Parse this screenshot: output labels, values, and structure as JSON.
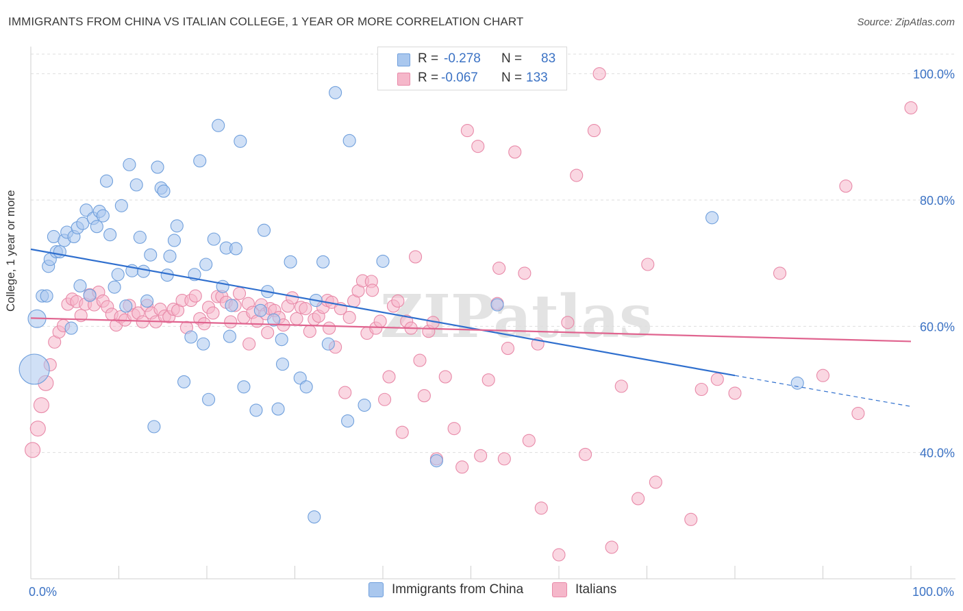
{
  "title": "IMMIGRANTS FROM CHINA VS ITALIAN COLLEGE, 1 YEAR OR MORE CORRELATION CHART",
  "source": "Source: ZipAtlas.com",
  "watermark": "ZIPatlas",
  "colors": {
    "blue_fill": "#a9c7ee",
    "blue_stroke": "#6f9fdc",
    "blue_line": "#2f6fce",
    "pink_fill": "#f5b7ca",
    "pink_stroke": "#e889a8",
    "pink_line": "#e0648f",
    "tick_label": "#3b72c4",
    "grid": "#dedede"
  },
  "stats": {
    "r_label": "R =",
    "n_label": "N =",
    "blue_r": "-0.278",
    "blue_n": "83",
    "pink_r": "-0.067",
    "pink_n": "133"
  },
  "chart_data": {
    "type": "scatter",
    "title": "IMMIGRANTS FROM CHINA VS ITALIAN COLLEGE, 1 YEAR OR MORE CORRELATION CHART",
    "xlabel": "",
    "ylabel": "College, 1 year or more",
    "xlim": [
      0,
      100
    ],
    "ylim": [
      20,
      103
    ],
    "x_tick_labels": [
      "0.0%",
      "100.0%"
    ],
    "y_ticks": [
      40,
      60,
      80,
      100
    ],
    "y_tick_labels": [
      "40.0%",
      "60.0%",
      "80.0%",
      "100.0%"
    ],
    "grid": true,
    "legend": "bottom",
    "series": [
      {
        "name": "Immigrants from China",
        "color": "#6f9fdc",
        "points": [
          [
            0.4,
            53.2
          ],
          [
            0.7,
            61.2
          ],
          [
            1.3,
            64.8
          ],
          [
            1.8,
            64.8
          ],
          [
            2.0,
            69.5
          ],
          [
            2.2,
            70.6
          ],
          [
            2.6,
            74.2
          ],
          [
            2.9,
            71.8
          ],
          [
            3.3,
            71.8
          ],
          [
            3.8,
            73.6
          ],
          [
            4.1,
            74.9
          ],
          [
            4.6,
            59.7
          ],
          [
            4.9,
            74.2
          ],
          [
            5.3,
            75.6
          ],
          [
            5.6,
            66.4
          ],
          [
            5.9,
            76.3
          ],
          [
            6.3,
            78.4
          ],
          [
            6.7,
            64.9
          ],
          [
            7.1,
            77.1
          ],
          [
            7.5,
            75.8
          ],
          [
            7.8,
            78.2
          ],
          [
            8.2,
            77.5
          ],
          [
            8.6,
            83.0
          ],
          [
            9.0,
            74.5
          ],
          [
            9.5,
            66.2
          ],
          [
            9.9,
            68.2
          ],
          [
            10.3,
            79.1
          ],
          [
            10.8,
            63.2
          ],
          [
            11.2,
            85.6
          ],
          [
            11.5,
            68.8
          ],
          [
            12.0,
            82.4
          ],
          [
            12.4,
            74.1
          ],
          [
            12.8,
            68.7
          ],
          [
            13.2,
            64.0
          ],
          [
            13.6,
            71.3
          ],
          [
            14.0,
            44.1
          ],
          [
            14.4,
            85.2
          ],
          [
            14.8,
            81.9
          ],
          [
            15.1,
            81.4
          ],
          [
            15.5,
            68.1
          ],
          [
            15.8,
            71.1
          ],
          [
            16.3,
            73.6
          ],
          [
            16.6,
            75.9
          ],
          [
            17.4,
            51.2
          ],
          [
            18.2,
            58.3
          ],
          [
            18.6,
            68.2
          ],
          [
            19.2,
            86.2
          ],
          [
            19.6,
            57.2
          ],
          [
            19.9,
            69.8
          ],
          [
            20.2,
            48.4
          ],
          [
            20.8,
            73.8
          ],
          [
            21.3,
            91.8
          ],
          [
            21.8,
            66.3
          ],
          [
            22.2,
            72.4
          ],
          [
            22.6,
            58.4
          ],
          [
            22.8,
            63.3
          ],
          [
            23.3,
            72.3
          ],
          [
            23.8,
            89.3
          ],
          [
            24.2,
            50.4
          ],
          [
            25.6,
            46.7
          ],
          [
            26.1,
            62.5
          ],
          [
            26.5,
            75.2
          ],
          [
            26.9,
            65.5
          ],
          [
            27.6,
            61.0
          ],
          [
            28.1,
            46.9
          ],
          [
            28.5,
            57.9
          ],
          [
            28.6,
            54.0
          ],
          [
            29.5,
            70.2
          ],
          [
            30.6,
            51.8
          ],
          [
            31.3,
            50.4
          ],
          [
            32.2,
            29.8
          ],
          [
            32.4,
            64.1
          ],
          [
            33.2,
            70.2
          ],
          [
            33.8,
            57.2
          ],
          [
            34.6,
            97.0
          ],
          [
            36.0,
            45.0
          ],
          [
            36.2,
            89.4
          ],
          [
            37.9,
            47.5
          ],
          [
            40.0,
            70.3
          ],
          [
            46.1,
            38.7
          ],
          [
            77.4,
            77.2
          ],
          [
            87.1,
            51.0
          ],
          [
            53.0,
            63.4
          ]
        ]
      },
      {
        "name": "Italians",
        "color": "#e889a8",
        "points": [
          [
            0.2,
            40.4
          ],
          [
            0.8,
            43.8
          ],
          [
            1.2,
            47.5
          ],
          [
            1.7,
            51.0
          ],
          [
            2.2,
            53.9
          ],
          [
            2.7,
            57.5
          ],
          [
            3.2,
            59.1
          ],
          [
            3.7,
            60.1
          ],
          [
            4.2,
            63.5
          ],
          [
            4.7,
            64.3
          ],
          [
            5.2,
            63.9
          ],
          [
            5.7,
            61.7
          ],
          [
            6.2,
            63.5
          ],
          [
            6.7,
            65.0
          ],
          [
            7.2,
            63.4
          ],
          [
            7.7,
            65.4
          ],
          [
            8.2,
            64.0
          ],
          [
            8.7,
            63.1
          ],
          [
            9.2,
            61.9
          ],
          [
            9.7,
            60.2
          ],
          [
            10.2,
            61.5
          ],
          [
            10.7,
            61.0
          ],
          [
            11.2,
            63.3
          ],
          [
            11.7,
            61.8
          ],
          [
            12.2,
            62.1
          ],
          [
            12.7,
            60.7
          ],
          [
            13.2,
            63.3
          ],
          [
            13.7,
            62.1
          ],
          [
            14.2,
            60.7
          ],
          [
            14.7,
            62.7
          ],
          [
            15.2,
            61.6
          ],
          [
            15.7,
            61.5
          ],
          [
            16.2,
            62.7
          ],
          [
            16.7,
            62.5
          ],
          [
            17.2,
            64.1
          ],
          [
            17.7,
            59.8
          ],
          [
            18.2,
            64.1
          ],
          [
            18.7,
            64.8
          ],
          [
            19.2,
            61.2
          ],
          [
            19.7,
            60.4
          ],
          [
            20.2,
            63.0
          ],
          [
            20.7,
            62.1
          ],
          [
            21.2,
            64.7
          ],
          [
            21.7,
            64.7
          ],
          [
            22.2,
            63.8
          ],
          [
            22.7,
            60.7
          ],
          [
            23.2,
            63.3
          ],
          [
            23.7,
            65.2
          ],
          [
            24.2,
            61.4
          ],
          [
            24.7,
            63.6
          ],
          [
            25.2,
            62.2
          ],
          [
            25.7,
            60.8
          ],
          [
            26.2,
            63.4
          ],
          [
            26.7,
            62.0
          ],
          [
            27.2,
            62.8
          ],
          [
            27.7,
            62.5
          ],
          [
            28.2,
            61.4
          ],
          [
            28.7,
            60.2
          ],
          [
            29.2,
            63.2
          ],
          [
            29.7,
            64.5
          ],
          [
            30.2,
            61.2
          ],
          [
            30.7,
            63.0
          ],
          [
            31.2,
            62.8
          ],
          [
            31.7,
            59.2
          ],
          [
            32.2,
            61.1
          ],
          [
            32.7,
            61.6
          ],
          [
            33.2,
            63.0
          ],
          [
            33.7,
            64.1
          ],
          [
            34.2,
            63.8
          ],
          [
            34.6,
            56.7
          ],
          [
            35.2,
            62.8
          ],
          [
            35.7,
            49.5
          ],
          [
            36.2,
            61.4
          ],
          [
            36.7,
            64.0
          ],
          [
            37.2,
            65.6
          ],
          [
            37.7,
            67.2
          ],
          [
            38.2,
            58.9
          ],
          [
            38.7,
            67.1
          ],
          [
            39.2,
            59.7
          ],
          [
            39.7,
            60.8
          ],
          [
            40.2,
            48.4
          ],
          [
            40.7,
            52.0
          ],
          [
            41.2,
            63.2
          ],
          [
            41.7,
            64.0
          ],
          [
            42.2,
            43.2
          ],
          [
            42.7,
            60.8
          ],
          [
            43.2,
            59.7
          ],
          [
            43.7,
            71.0
          ],
          [
            44.2,
            54.6
          ],
          [
            44.7,
            49.0
          ],
          [
            45.2,
            59.2
          ],
          [
            45.7,
            60.6
          ],
          [
            46.1,
            39.0
          ],
          [
            47.1,
            52.0
          ],
          [
            48.1,
            43.8
          ],
          [
            49.0,
            37.7
          ],
          [
            49.6,
            91.0
          ],
          [
            50.8,
            88.5
          ],
          [
            51.1,
            39.5
          ],
          [
            52.0,
            51.5
          ],
          [
            53.0,
            63.6
          ],
          [
            53.2,
            69.2
          ],
          [
            53.8,
            39.0
          ],
          [
            54.2,
            56.5
          ],
          [
            55.0,
            87.6
          ],
          [
            56.1,
            68.4
          ],
          [
            56.6,
            41.9
          ],
          [
            57.6,
            57.2
          ],
          [
            58.0,
            31.2
          ],
          [
            60.0,
            23.8
          ],
          [
            61.0,
            60.6
          ],
          [
            62.0,
            83.9
          ],
          [
            63.0,
            39.7
          ],
          [
            64.0,
            91.0
          ],
          [
            64.6,
            100.0
          ],
          [
            66.0,
            25.0
          ],
          [
            67.1,
            50.5
          ],
          [
            69.0,
            32.7
          ],
          [
            70.1,
            69.8
          ],
          [
            71.0,
            35.3
          ],
          [
            75.0,
            29.4
          ],
          [
            76.2,
            50.0
          ],
          [
            78.0,
            51.6
          ],
          [
            80.0,
            49.4
          ],
          [
            85.1,
            68.4
          ],
          [
            90.0,
            52.2
          ],
          [
            92.6,
            82.2
          ],
          [
            94.0,
            46.2
          ],
          [
            100.0,
            94.6
          ],
          [
            38.8,
            65.7
          ],
          [
            26.9,
            59.0
          ],
          [
            24.8,
            57.2
          ],
          [
            33.9,
            59.7
          ]
        ]
      }
    ],
    "trend_lines": [
      {
        "series": "Immigrants from China",
        "x": [
          0,
          80,
          100
        ],
        "y": [
          72.2,
          52.2,
          47.3
        ],
        "solid_until": 80
      },
      {
        "series": "Italians",
        "x": [
          0,
          100
        ],
        "y": [
          61.3,
          57.6
        ],
        "solid_until": 100
      }
    ]
  }
}
